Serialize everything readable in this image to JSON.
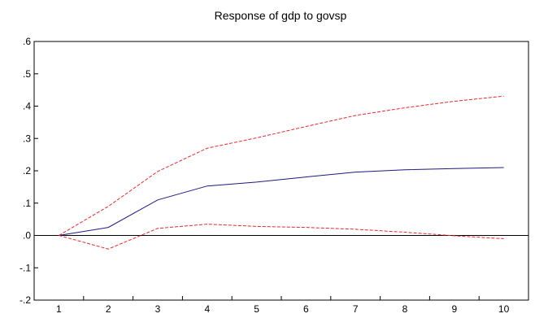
{
  "chart_data": {
    "type": "line",
    "title": "Response of gdp to govsp",
    "xlabel": "",
    "ylabel": "",
    "x": [
      1,
      2,
      3,
      4,
      5,
      6,
      7,
      8,
      9,
      10
    ],
    "x_tick_labels": [
      "1",
      "2",
      "3",
      "4",
      "5",
      "6",
      "7",
      "8",
      "9",
      "10"
    ],
    "ylim": [
      -0.2,
      0.6
    ],
    "y_ticks": [
      -0.2,
      -0.1,
      0.0,
      0.1,
      0.2,
      0.3,
      0.4,
      0.5,
      0.6
    ],
    "y_tick_labels": [
      "-.2",
      "-.1",
      ".0",
      ".1",
      ".2",
      ".3",
      ".4",
      ".5",
      ".6"
    ],
    "zero_line": true,
    "grid": false,
    "legend": "none",
    "series": [
      {
        "role": "response",
        "color": "#1a1a80",
        "style": "solid",
        "values": [
          0.0,
          0.025,
          0.11,
          0.153,
          0.165,
          0.181,
          0.196,
          0.203,
          0.207,
          0.21
        ]
      },
      {
        "role": "upper-band",
        "color": "#e8262b",
        "style": "dashed",
        "values": [
          0.0,
          0.09,
          0.198,
          0.27,
          0.302,
          0.337,
          0.371,
          0.395,
          0.415,
          0.431
        ]
      },
      {
        "role": "lower-band",
        "color": "#e8262b",
        "style": "dashed",
        "values": [
          0.0,
          -0.042,
          0.022,
          0.035,
          0.028,
          0.025,
          0.019,
          0.01,
          -0.001,
          -0.01
        ]
      }
    ]
  }
}
